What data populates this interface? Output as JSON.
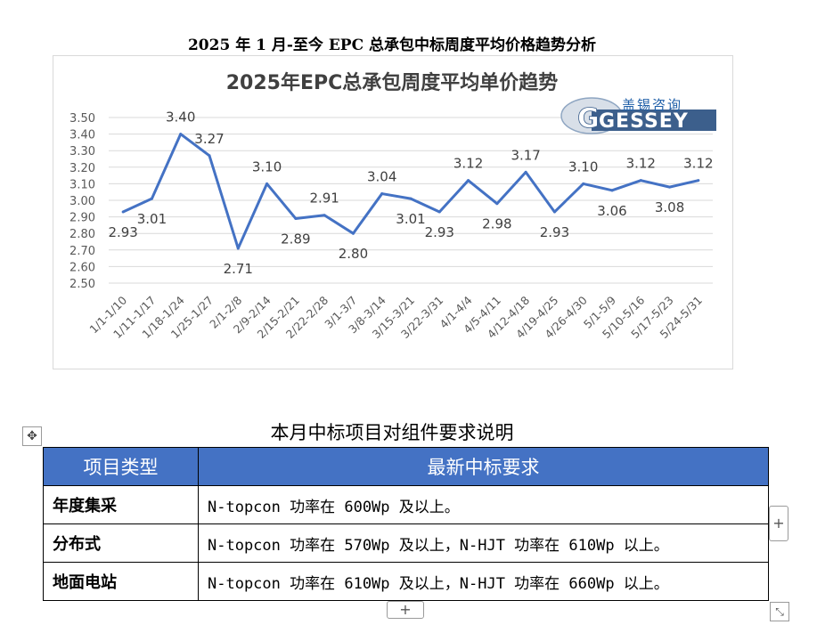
{
  "document": {
    "title": "2025 年 1 月-至今 EPC 总承包中标周度平均价格趋势分析",
    "section_title": "本月中标项目对组件要求说明"
  },
  "logo": {
    "cn_text": "盖锡咨询",
    "en_text": "GESSEY",
    "color": "#1f5fa8"
  },
  "chart_data": {
    "type": "line",
    "title": "2025年EPC总承包周度平均单价趋势",
    "categories": [
      "1/1-1/10",
      "1/11-1/17",
      "1/18-1/24",
      "1/25-1/27",
      "2/1-2/8",
      "2/9-2/14",
      "2/15-2/21",
      "2/22-2/28",
      "3/1-3/7",
      "3/8-3/14",
      "3/15-3/21",
      "3/22-3/31",
      "4/1-4/4",
      "4/5-4/11",
      "4/12-4/18",
      "4/19-4/25",
      "4/26-4/30",
      "5/1-5/9",
      "5/10-5/16",
      "5/17-5/23",
      "5/24-5/31"
    ],
    "values": [
      2.93,
      3.01,
      3.4,
      3.27,
      2.71,
      3.1,
      2.89,
      2.91,
      2.8,
      3.04,
      3.01,
      2.93,
      3.12,
      2.98,
      3.17,
      2.93,
      3.1,
      3.06,
      3.12,
      3.08,
      3.12
    ],
    "data_labels": [
      "2.93",
      "3.01",
      "3.40",
      "3.27",
      "2.71",
      "3.10",
      "2.89",
      "2.91",
      "2.80",
      "3.04",
      "3.01",
      "2.93",
      "3.12",
      "2.98",
      "3.17",
      "2.93",
      "3.10",
      "3.06",
      "3.12",
      "3.08",
      "3.12"
    ],
    "label_side": [
      "below",
      "below",
      "above",
      "above",
      "below",
      "above",
      "below",
      "above",
      "below",
      "above",
      "below",
      "below",
      "above",
      "below",
      "above",
      "below",
      "above",
      "below",
      "above",
      "below",
      "above"
    ],
    "y_ticks": [
      "3.50",
      "3.40",
      "3.30",
      "3.20",
      "3.10",
      "3.00",
      "2.90",
      "2.80",
      "2.70",
      "2.60",
      "2.50"
    ],
    "ylim": [
      2.5,
      3.5
    ],
    "grid": true,
    "line_color": "#4472c4"
  },
  "table": {
    "headers": [
      "项目类型",
      "最新中标要求"
    ],
    "rows": [
      {
        "type": "年度集采",
        "requirement": "N-topcon 功率在 600Wp 及以上。"
      },
      {
        "type": "分布式",
        "requirement": "N-topcon 功率在 570Wp 及以上，N-HJT 功率在 610Wp 以上。"
      },
      {
        "type": "地面电站",
        "requirement": "N-topcon 功率在 610Wp 及以上，N-HJT 功率在 660Wp 以上。"
      }
    ],
    "header_color": "#4472c4"
  },
  "controls": {
    "move_icon": "✥",
    "add_column_icon": "+",
    "add_row_icon": "+",
    "resize_icon": "⤡"
  }
}
